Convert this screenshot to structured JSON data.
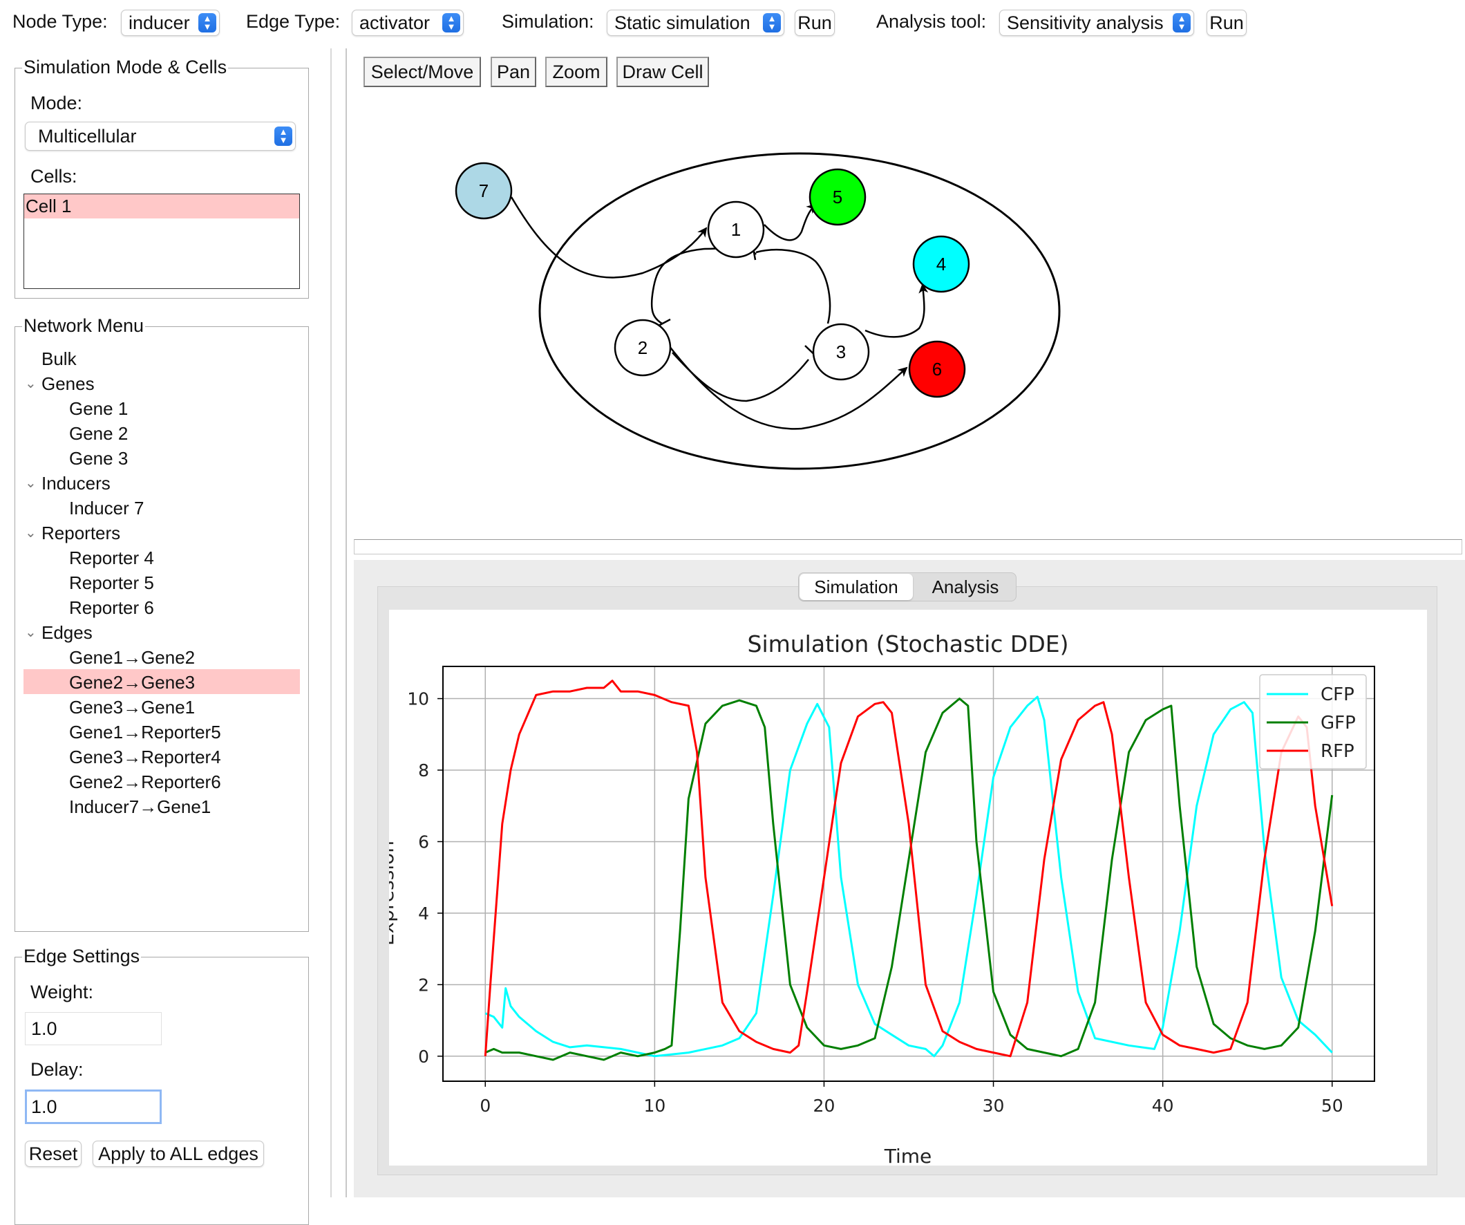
{
  "toolbar": {
    "node_type_label": "Node Type:",
    "node_type_value": "inducer",
    "edge_type_label": "Edge Type:",
    "edge_type_value": "activator",
    "simulation_label": "Simulation:",
    "simulation_value": "Static simulation",
    "run_label": "Run",
    "analysis_label": "Analysis tool:",
    "analysis_value": "Sensitivity analysis",
    "run2_label": "Run"
  },
  "sim_mode": {
    "title": "Simulation Mode & Cells",
    "mode_label": "Mode:",
    "mode_value": "Multicellular",
    "cells_label": "Cells:",
    "cells": [
      "Cell 1"
    ]
  },
  "network_menu": {
    "title": "Network Menu",
    "bulk": "Bulk",
    "genes_label": "Genes",
    "genes": [
      "Gene 1",
      "Gene 2",
      "Gene 3"
    ],
    "inducers_label": "Inducers",
    "inducers": [
      "Inducer 7"
    ],
    "reporters_label": "Reporters",
    "reporters": [
      "Reporter 4",
      "Reporter 5",
      "Reporter 6"
    ],
    "edges_label": "Edges",
    "edges": [
      "Gene1→Gene2",
      "Gene2→Gene3",
      "Gene3→Gene1",
      "Gene1→Reporter5",
      "Gene3→Reporter4",
      "Gene2→Reporter6",
      "Inducer7→Gene1"
    ],
    "selected_edge": "Gene2→Gene3"
  },
  "edge_settings": {
    "title": "Edge Settings",
    "weight_label": "Weight:",
    "weight_value": "1.0",
    "delay_label": "Delay:",
    "delay_value": "1.0",
    "reset_label": "Reset",
    "apply_label": "Apply to ALL edges"
  },
  "canvas_toolbar": {
    "select_move": "Select/Move",
    "pan": "Pan",
    "zoom": "Zoom",
    "draw_cell": "Draw Cell"
  },
  "network": {
    "nodes": [
      {
        "id": "1",
        "kind": "gene",
        "color": "#ffffff"
      },
      {
        "id": "2",
        "kind": "gene",
        "color": "#ffffff"
      },
      {
        "id": "3",
        "kind": "gene",
        "color": "#ffffff"
      },
      {
        "id": "4",
        "kind": "reporter",
        "color": "#00ffff"
      },
      {
        "id": "5",
        "kind": "reporter",
        "color": "#00ff00"
      },
      {
        "id": "6",
        "kind": "reporter",
        "color": "#ff0000"
      },
      {
        "id": "7",
        "kind": "inducer",
        "color": "#add8e6"
      }
    ]
  },
  "tabs": {
    "simulation": "Simulation",
    "analysis": "Analysis",
    "active": "Simulation"
  },
  "chart_data": {
    "type": "line",
    "title": "Simulation (Stochastic DDE)",
    "xlabel": "Time",
    "ylabel": "Expression",
    "xlim": [
      -2.5,
      52.5
    ],
    "ylim": [
      -0.7,
      10.9
    ],
    "xticks": [
      0,
      10,
      20,
      30,
      40,
      50
    ],
    "yticks": [
      0,
      2,
      4,
      6,
      8,
      10
    ],
    "grid": true,
    "legend_position": "top-right",
    "series": [
      {
        "name": "CFP",
        "color": "#00ffff",
        "x": [
          0,
          0.5,
          1,
          1.2,
          1.5,
          2,
          3,
          4,
          5,
          6,
          8,
          10,
          12,
          14,
          15,
          16,
          17,
          18,
          19,
          19.6,
          20.3,
          21,
          22,
          23,
          24,
          25,
          26,
          26.5,
          27,
          28,
          29,
          30,
          31,
          32,
          32.6,
          33,
          34,
          35,
          36,
          38,
          39.5,
          40,
          41,
          42,
          43,
          44,
          44.8,
          45.3,
          46,
          47,
          48,
          49,
          50
        ],
        "y": [
          1.2,
          1.1,
          0.8,
          1.9,
          1.4,
          1.1,
          0.7,
          0.4,
          0.25,
          0.3,
          0.2,
          0.0,
          0.1,
          0.3,
          0.5,
          1.2,
          4.5,
          8.0,
          9.3,
          9.85,
          9.2,
          5.0,
          2.0,
          0.9,
          0.6,
          0.3,
          0.2,
          0.0,
          0.3,
          1.5,
          4.5,
          7.8,
          9.2,
          9.8,
          10.05,
          9.4,
          5.0,
          1.8,
          0.5,
          0.3,
          0.2,
          0.8,
          3.5,
          7.0,
          9.0,
          9.7,
          9.9,
          9.6,
          5.8,
          2.2,
          1.0,
          0.6,
          0.1
        ]
      },
      {
        "name": "GFP",
        "color": "#007f00",
        "x": [
          0,
          0.5,
          1,
          2,
          3,
          4,
          5,
          6,
          7,
          8,
          9,
          10,
          10.6,
          11,
          11.5,
          12,
          13,
          14,
          15,
          16,
          16.5,
          17,
          18,
          19,
          20,
          21,
          22,
          23,
          24,
          25,
          26,
          27,
          28,
          28.5,
          29,
          30,
          31,
          32,
          33,
          34,
          35,
          36,
          37,
          38,
          39,
          40,
          40.5,
          41,
          42,
          43,
          44,
          45,
          46,
          47,
          48,
          49,
          50
        ],
        "y": [
          0.1,
          0.2,
          0.1,
          0.1,
          0.0,
          -0.1,
          0.1,
          0.0,
          -0.1,
          0.1,
          0.0,
          0.1,
          0.2,
          0.3,
          3.5,
          7.2,
          9.3,
          9.8,
          9.95,
          9.8,
          9.2,
          6.5,
          2.0,
          0.8,
          0.3,
          0.2,
          0.3,
          0.5,
          2.5,
          5.5,
          8.5,
          9.6,
          10.0,
          9.8,
          6.0,
          1.8,
          0.6,
          0.2,
          0.1,
          0.0,
          0.2,
          1.5,
          5.5,
          8.5,
          9.4,
          9.7,
          9.8,
          7.0,
          2.5,
          0.9,
          0.5,
          0.3,
          0.2,
          0.3,
          0.8,
          3.5,
          7.3
        ]
      },
      {
        "name": "RFP",
        "color": "#ff0000",
        "x": [
          0,
          0.3,
          1,
          1.5,
          2,
          3,
          4,
          5,
          6,
          7,
          7.5,
          8,
          9,
          10,
          11,
          12,
          12.5,
          13,
          14,
          15,
          16,
          17,
          18,
          18.5,
          19,
          20,
          21,
          22,
          23,
          23.5,
          24,
          25,
          26,
          27,
          28,
          29,
          30,
          31,
          32,
          33,
          34,
          35,
          36,
          36.5,
          37,
          38,
          39,
          40,
          41,
          42,
          43,
          44,
          45,
          46,
          47,
          48,
          48.5,
          49,
          50
        ],
        "y": [
          0.0,
          2.0,
          6.5,
          8.0,
          9.0,
          10.1,
          10.2,
          10.2,
          10.3,
          10.3,
          10.5,
          10.2,
          10.2,
          10.1,
          9.9,
          9.8,
          8.5,
          5.0,
          1.5,
          0.7,
          0.4,
          0.2,
          0.1,
          0.3,
          1.8,
          5.0,
          8.2,
          9.5,
          9.85,
          9.9,
          9.6,
          6.5,
          2.0,
          0.7,
          0.4,
          0.2,
          0.1,
          0.0,
          1.5,
          5.5,
          8.3,
          9.4,
          9.8,
          9.9,
          9.0,
          5.0,
          1.5,
          0.6,
          0.3,
          0.2,
          0.1,
          0.2,
          1.5,
          5.5,
          8.5,
          9.5,
          9.2,
          7.0,
          4.2
        ]
      }
    ]
  }
}
